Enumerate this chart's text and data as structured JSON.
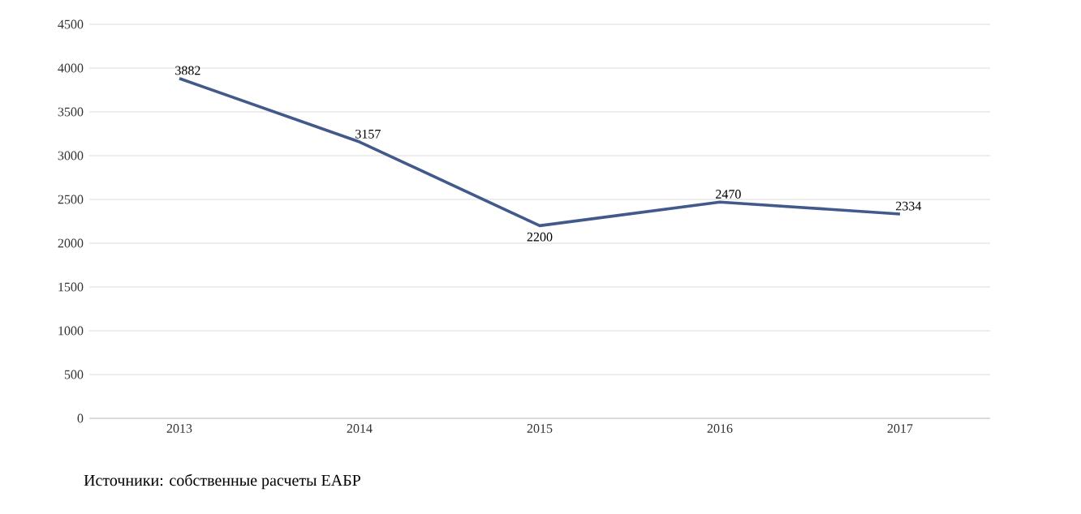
{
  "chart_data": {
    "type": "line",
    "categories": [
      "2013",
      "2014",
      "2015",
      "2016",
      "2017"
    ],
    "values": [
      3882,
      3157,
      2200,
      2470,
      2334
    ],
    "color": "#41598b",
    "ylim": [
      0,
      4500
    ],
    "yticks": [
      0,
      500,
      1000,
      1500,
      2000,
      2500,
      3000,
      3500,
      4000,
      4500
    ],
    "grid": "y",
    "data_labels": true,
    "marker": "none",
    "line_style": "solid",
    "annotations": [
      "Источники: собственные расчеты ЕАБР"
    ]
  }
}
